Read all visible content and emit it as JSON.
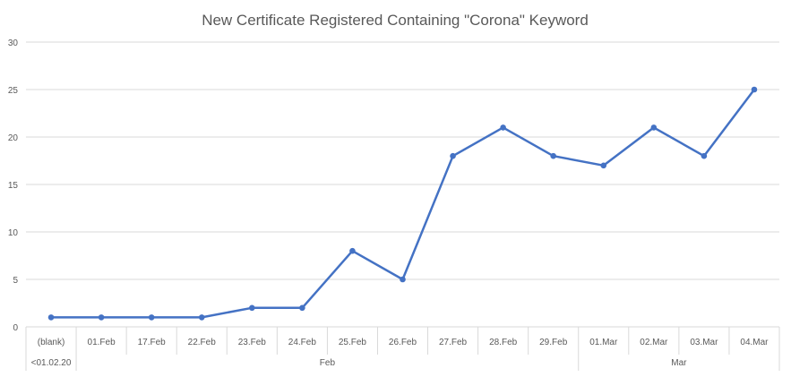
{
  "chart_data": {
    "type": "line",
    "title": "New Certificate Registered Containing \"Corona\" Keyword",
    "xlabel": "",
    "ylabel": "",
    "ylim": [
      0,
      30
    ],
    "yticks": [
      0,
      5,
      10,
      15,
      20,
      25,
      30
    ],
    "grid": true,
    "legend": "none",
    "categories": [
      "(blank)",
      "01.Feb",
      "17.Feb",
      "22.Feb",
      "23.Feb",
      "24.Feb",
      "25.Feb",
      "26.Feb",
      "27.Feb",
      "28.Feb",
      "29.Feb",
      "01.Mar",
      "02.Mar",
      "03.Mar",
      "04.Mar"
    ],
    "groups": [
      {
        "label": "<01.02.20",
        "count": 1
      },
      {
        "label": "Feb",
        "count": 10
      },
      {
        "label": "Mar",
        "count": 4
      }
    ],
    "series": [
      {
        "values": [
          1,
          1,
          1,
          1,
          2,
          2,
          8,
          5,
          18,
          21,
          18,
          17,
          21,
          18,
          25
        ]
      }
    ],
    "colors": {
      "line": "#4472C4",
      "grid": "#D9D9D9",
      "text": "#595959"
    }
  }
}
